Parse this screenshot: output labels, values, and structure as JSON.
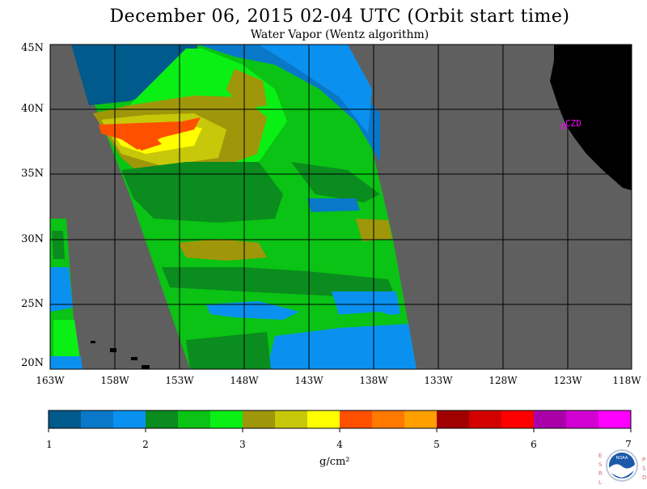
{
  "title": "December 06, 2015  02-04 UTC  (Orbit start time)",
  "subtitle": "Water Vapor (Wentz algorithm)",
  "map": {
    "lat_labels": [
      "45N",
      "40N",
      "35N",
      "30N",
      "25N",
      "20N"
    ],
    "lon_labels": [
      "163W",
      "158W",
      "153W",
      "148W",
      "143W",
      "138W",
      "133W",
      "128W",
      "123W",
      "118W"
    ],
    "station_label": "CZD",
    "colors": {
      "no_data": "#5f5f5f",
      "land": "#000000",
      "grid": "#000000",
      "station": "#ff00ff"
    }
  },
  "colorbar": {
    "tick_labels": [
      "1",
      "2",
      "3",
      "4",
      "5",
      "6",
      "7"
    ],
    "unit": "g/cm²",
    "colors": [
      "#005a8c",
      "#0a78c8",
      "#0a91f0",
      "#0a8c1e",
      "#0ac314",
      "#0af014",
      "#a0960a",
      "#c8c80a",
      "#ffff00",
      "#ff5000",
      "#ff7800",
      "#ffa000",
      "#a00000",
      "#d20000",
      "#ff0000",
      "#aa00aa",
      "#d200d2",
      "#ff00ff"
    ]
  },
  "logo": {
    "left_letters": "ESRL",
    "right_letters": "PSD",
    "center_text": "NOAA"
  }
}
